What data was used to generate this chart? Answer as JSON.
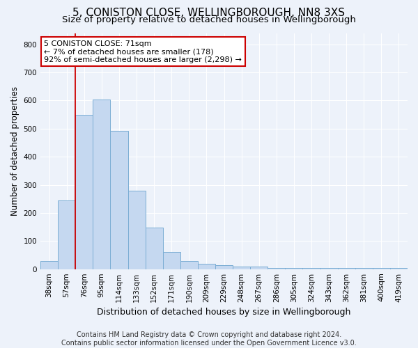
{
  "title_line1": "5, CONISTON CLOSE, WELLINGBOROUGH, NN8 3XS",
  "title_line2": "Size of property relative to detached houses in Wellingborough",
  "xlabel": "Distribution of detached houses by size in Wellingborough",
  "ylabel": "Number of detached properties",
  "categories": [
    "38sqm",
    "57sqm",
    "76sqm",
    "95sqm",
    "114sqm",
    "133sqm",
    "152sqm",
    "171sqm",
    "190sqm",
    "209sqm",
    "229sqm",
    "248sqm",
    "267sqm",
    "286sqm",
    "305sqm",
    "324sqm",
    "343sqm",
    "362sqm",
    "381sqm",
    "400sqm",
    "419sqm"
  ],
  "values": [
    30,
    245,
    548,
    603,
    493,
    278,
    148,
    62,
    30,
    18,
    13,
    10,
    10,
    5,
    5,
    5,
    5,
    5,
    5,
    5,
    5
  ],
  "bar_color": "#c5d8f0",
  "bar_edge_color": "#7aadd4",
  "vline_color": "#cc0000",
  "annotation_text": "5 CONISTON CLOSE: 71sqm\n← 7% of detached houses are smaller (178)\n92% of semi-detached houses are larger (2,298) →",
  "annotation_box_color": "white",
  "annotation_box_edge": "#cc0000",
  "ylim": [
    0,
    840
  ],
  "yticks": [
    0,
    100,
    200,
    300,
    400,
    500,
    600,
    700,
    800
  ],
  "footer_text": "Contains HM Land Registry data © Crown copyright and database right 2024.\nContains public sector information licensed under the Open Government Licence v3.0.",
  "bg_color": "#edf2fa",
  "grid_color": "#ffffff",
  "title1_fontsize": 11,
  "title2_fontsize": 9.5,
  "xlabel_fontsize": 9,
  "ylabel_fontsize": 8.5,
  "tick_fontsize": 7.5,
  "footer_fontsize": 7,
  "annotation_fontsize": 8
}
